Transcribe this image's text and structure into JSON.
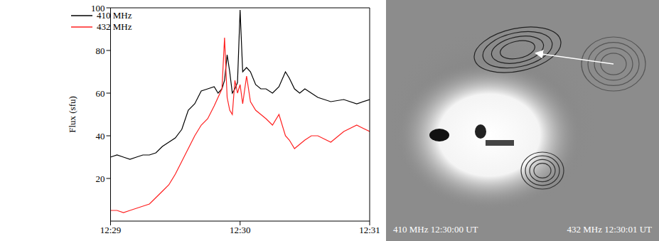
{
  "chart_data": {
    "type": "line",
    "y_label": "Flux (sfu)",
    "x": [
      29.0,
      29.05,
      29.1,
      29.15,
      29.2,
      29.25,
      29.3,
      29.35,
      29.4,
      29.45,
      29.5,
      29.55,
      29.6,
      29.65,
      29.7,
      29.75,
      29.8,
      29.83,
      29.86,
      29.88,
      29.9,
      29.92,
      29.94,
      29.96,
      29.98,
      30.0,
      30.02,
      30.05,
      30.08,
      30.12,
      30.16,
      30.2,
      30.25,
      30.3,
      30.35,
      30.38,
      30.42,
      30.46,
      30.5,
      30.55,
      30.6,
      30.7,
      30.8,
      30.9,
      31.0
    ],
    "series": [
      {
        "name": "410 MHz",
        "color": "#000000",
        "values": [
          30,
          31,
          30,
          29,
          30,
          31,
          31,
          32,
          35,
          37,
          39,
          43,
          52,
          55,
          61,
          62,
          63,
          60,
          62,
          66,
          78,
          70,
          60,
          62,
          65,
          99,
          70,
          72,
          70,
          64,
          62,
          62,
          60,
          63,
          70,
          67,
          62,
          60,
          62,
          60,
          58,
          56,
          57,
          55,
          57
        ]
      },
      {
        "name": "432 MHz",
        "color": "#ff2020",
        "values": [
          5,
          5,
          4,
          5,
          6,
          7,
          8,
          11,
          14,
          17,
          22,
          28,
          34,
          40,
          45,
          48,
          54,
          58,
          62,
          86,
          58,
          52,
          50,
          66,
          60,
          64,
          55,
          68,
          56,
          52,
          50,
          48,
          45,
          50,
          40,
          38,
          34,
          36,
          38,
          40,
          40,
          37,
          42,
          45,
          42
        ]
      }
    ],
    "xlim": [
      29,
      31
    ],
    "xticks": [
      {
        "value": 29,
        "label": "12:29"
      },
      {
        "value": 30,
        "label": "12:30"
      },
      {
        "value": 31,
        "label": "12:31"
      }
    ],
    "ylim": [
      0,
      100
    ],
    "yticks": [
      20,
      40,
      60,
      80,
      100
    ],
    "legend": "upper left"
  },
  "image_panel": {
    "labels": [
      "410 MHz 12:30:00 UT",
      "432 MHz 12:30:01 UT"
    ]
  }
}
